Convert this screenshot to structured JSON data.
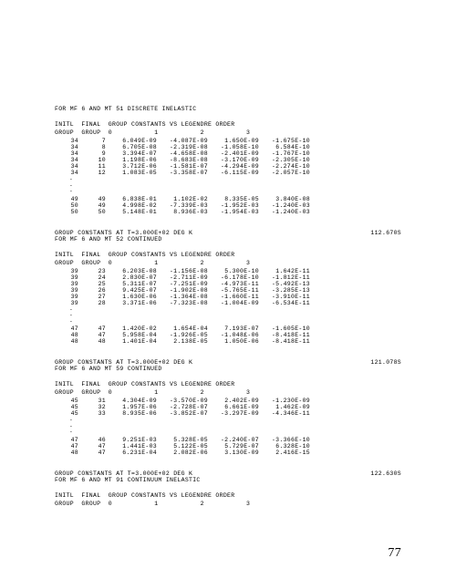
{
  "page_number": "77",
  "sections": [
    {
      "titles": [
        "FOR MF 6 AND MT 51 DISCRETE INELASTIC"
      ],
      "right_title": null,
      "header": {
        "l1": [
          "INITL",
          "FINAL",
          "GROUP CONSTANTS VS LEGENDRE ORDER"
        ],
        "l2": [
          "GROUP",
          "GROUP",
          "0",
          "1",
          "2",
          "3"
        ]
      },
      "rows1": [
        [
          "34",
          "7",
          "6.049E-09",
          "-4.087E-09",
          "1.650E-09",
          "-1.675E-10"
        ],
        [
          "34",
          "8",
          "6.705E-08",
          "-2.319E-08",
          "-1.058E-10",
          "6.584E-10"
        ],
        [
          "34",
          "9",
          "3.394E-07",
          "-4.658E-08",
          "-2.401E-09",
          "-1.767E-10"
        ],
        [
          "34",
          "10",
          "1.198E-06",
          "-8.683E-08",
          "-3.170E-09",
          "-2.305E-10"
        ],
        [
          "34",
          "11",
          "3.712E-06",
          "-1.581E-07",
          "-4.294E-09",
          "-2.274E-10"
        ],
        [
          "34",
          "12",
          "1.083E-05",
          "-3.358E-07",
          "-6.115E-09",
          "-2.057E-10"
        ]
      ],
      "rows2": [
        [
          "49",
          "49",
          "6.838E-01",
          "1.102E-02",
          "8.335E-05",
          "3.840E-08"
        ],
        [
          "50",
          "49",
          "4.998E-02",
          "-7.339E-03",
          "-1.952E-03",
          "-1.240E-03"
        ],
        [
          "50",
          "50",
          "5.148E-01",
          "8.936E-03",
          "-1.954E-03",
          "-1.240E-03"
        ]
      ]
    },
    {
      "titles": [
        "GROUP CONSTANTS AT T=3.000E+02 DEG K",
        "FOR MF 6 AND MT 52 CONTINUED"
      ],
      "right_title": "112.670S",
      "header": {
        "l1": [
          "INITL",
          "FINAL",
          "GROUP CONSTANTS VS LEGENDRE ORDER"
        ],
        "l2": [
          "GROUP",
          "GROUP",
          "0",
          "1",
          "2",
          "3"
        ]
      },
      "rows1": [
        [
          "39",
          "23",
          "6.203E-08",
          "-1.156E-08",
          "5.300E-10",
          "1.642E-11"
        ],
        [
          "39",
          "24",
          "2.830E-07",
          "-2.711E-09",
          "-6.178E-10",
          "-1.812E-11"
        ],
        [
          "39",
          "25",
          "5.311E-07",
          "-7.251E-09",
          "-4.973E-11",
          "-5.492E-13"
        ],
        [
          "39",
          "26",
          "9.425E-07",
          "-1.902E-08",
          "-5.765E-11",
          "-3.285E-13"
        ],
        [
          "39",
          "27",
          "1.630E-06",
          "-1.364E-08",
          "-1.660E-11",
          "-3.910E-11"
        ],
        [
          "39",
          "28",
          "3.371E-06",
          "-7.323E-08",
          "-1.004E-09",
          "-6.534E-11"
        ]
      ],
      "rows2": [
        [
          "47",
          "47",
          "1.420E-02",
          "1.654E-04",
          "7.193E-07",
          "-1.605E-10"
        ],
        [
          "48",
          "47",
          "5.958E-04",
          "-1.926E-05",
          "-1.048£-06",
          "-8.418E-11"
        ],
        [
          "48",
          "48",
          "1.401E-04",
          "2.138E-05",
          "1.050E-06",
          "-8.418E-11"
        ]
      ]
    },
    {
      "titles": [
        "GROUP CONSTANTS AT T=3.000E+02 DEG K",
        "FOR MF 6 AND MT 59 CONTINUED"
      ],
      "right_title": "121.078S",
      "header": {
        "l1": [
          "INITL",
          "FINAL",
          "GROUP CONSTANTS VS LEGENDRE ORDER"
        ],
        "l2": [
          "GROUP",
          "GROUP",
          "0",
          "1",
          "2",
          "3"
        ]
      },
      "rows1": [
        [
          "45",
          "31",
          "4.304E-09",
          "-3.570E-09",
          "2.402E-09",
          "-1.230E-09"
        ],
        [
          "45",
          "32",
          "1.957E-06",
          "-2.728E-07",
          "6.661E-09",
          "1.462E-09"
        ],
        [
          "45",
          "33",
          "8.935E-06",
          "-3.852E-07",
          "-3.297E-09",
          "-4.346E-11"
        ]
      ],
      "rows2": [
        [
          "47",
          "46",
          "9.251E-03",
          "5.328E-05",
          "-2.240E-07",
          "-3.366E-10"
        ],
        [
          "47",
          "47",
          "1.441E-03",
          "5.122E-05",
          "5.729E-07",
          "6.328E-10"
        ],
        [
          "48",
          "47",
          "6.231E-04",
          "2.082E-06",
          "3.130E-09",
          "2.416E-15"
        ]
      ]
    },
    {
      "titles": [
        "GROUP CONSTANTS AT T=3.000E+02 DEG K",
        "FOR MF 6 AND MT 91 CONTINUUM INELASTIC"
      ],
      "right_title": "122.630S",
      "header": {
        "l1": [
          "INITL",
          "FINAL",
          "GROUP CONSTANTS VS LEGENDRE ORDER"
        ],
        "l2": [
          "GROUP",
          "GROUP",
          "0",
          "1",
          "2",
          "3"
        ]
      },
      "rows1": [],
      "rows2": null
    }
  ]
}
